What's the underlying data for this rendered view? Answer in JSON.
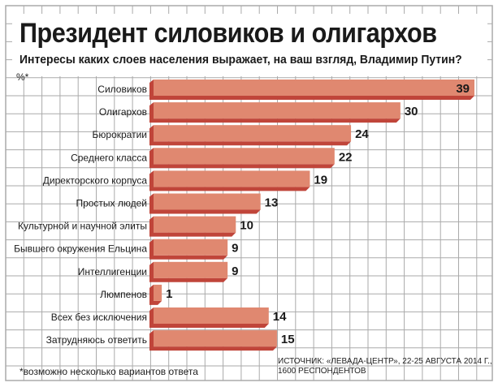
{
  "title": "Президент силовиков и олигархов",
  "subtitle": "Интересы каких слоев населения выражает, на ваш взгляд, Владимир Путин?",
  "unit_label": "%*",
  "footnote": "*возможно несколько вариантов ответа",
  "source_line1": "ИСТОЧНИК: «ЛЕВАДА-ЦЕНТР», 22-25 АВГУСТА 2014 Г.,",
  "source_line2": "1600 РЕСПОНДЕНТОВ",
  "colors": {
    "bar": "#e08870",
    "bar_shadow": "#c0453a",
    "grid": "#aaaaaa"
  },
  "chart_data": {
    "type": "bar",
    "orientation": "horizontal",
    "categories": [
      "Силовиков",
      "Олигархов",
      "Бюрократии",
      "Среднего класса",
      "Директорского корпуса",
      "Простых людей",
      "Культурной и научной элиты",
      "Бывшего окружения Ельцина",
      "Интеллигенции",
      "Люмпенов",
      "Всех без исключения",
      "Затрудняюсь ответить"
    ],
    "values": [
      39,
      30,
      24,
      22,
      19,
      13,
      10,
      9,
      9,
      1,
      14,
      15
    ],
    "ylabel": "%*",
    "grid": true
  }
}
